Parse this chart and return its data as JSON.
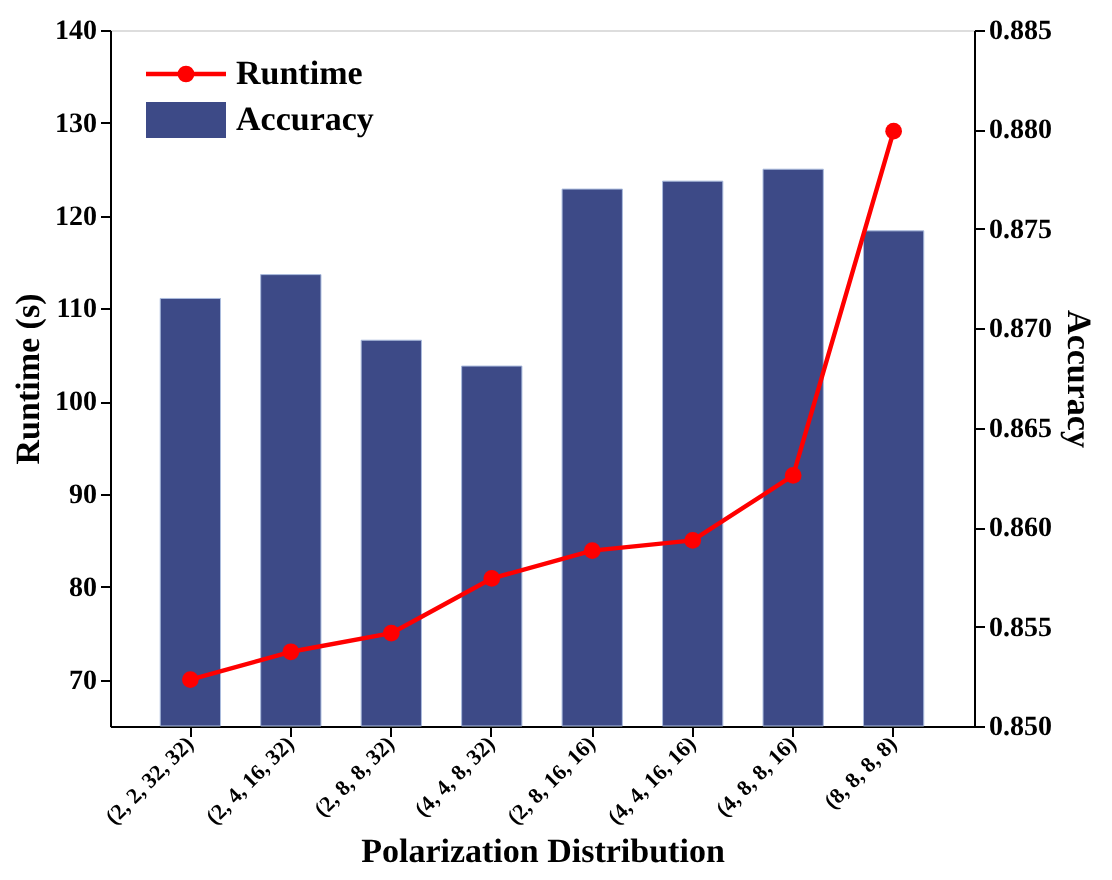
{
  "chart_data": {
    "type": "bar",
    "xlabel": "Polarization  Distribution",
    "ylabel": "Runtime (s)",
    "y2label": "Accuracy",
    "categories": [
      "(2, 2, 32, 32)",
      "(2, 4, 16, 32)",
      "(2, 8, 8, 32)",
      "(4, 4, 8, 32)",
      "(2, 8, 16, 16)",
      "(4, 4, 16, 16)",
      "(4, 8, 8, 16)",
      "(8, 8, 8, 8)"
    ],
    "series": [
      {
        "name": "Runtime",
        "type": "line",
        "color": "#ff0000",
        "values": [
          70.0,
          73.0,
          75.0,
          80.9,
          83.9,
          85.0,
          92.0,
          129.1
        ]
      },
      {
        "name": "Accuracy",
        "type": "bar",
        "axis": "y2",
        "color": "#3d4a87",
        "values": [
          0.8715,
          0.8727,
          0.8694,
          0.8681,
          0.877,
          0.8774,
          0.878,
          0.8749
        ]
      }
    ],
    "ylim": [
      65,
      140
    ],
    "yticks": [
      70,
      80,
      90,
      100,
      110,
      120,
      130,
      140
    ],
    "y2lim": [
      0.85,
      0.885
    ],
    "y2ticks": [
      {
        "value": 0.85,
        "label": "0.850"
      },
      {
        "value": 0.855,
        "label": "0.855"
      },
      {
        "value": 0.86,
        "label": "0.860"
      },
      {
        "value": 0.865,
        "label": "0.865"
      },
      {
        "value": 0.87,
        "label": "0.870"
      },
      {
        "value": 0.875,
        "label": "0.875"
      },
      {
        "value": 0.88,
        "label": "0.880"
      },
      {
        "value": 0.885,
        "label": "0.885"
      }
    ],
    "marker": "circle",
    "line_style": "solid",
    "grid": false,
    "legend": "top left"
  }
}
